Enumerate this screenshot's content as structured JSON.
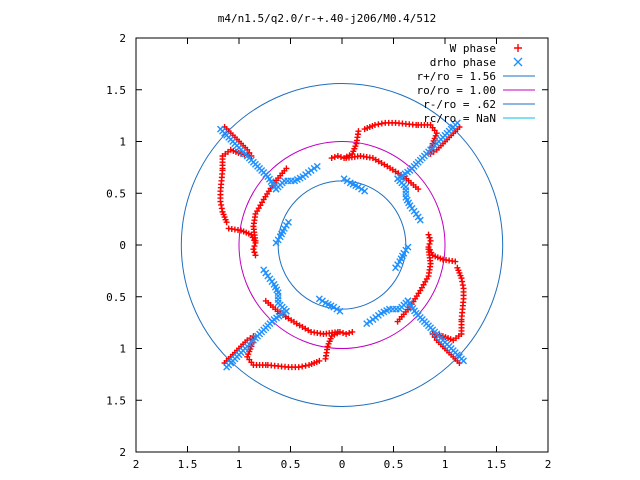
{
  "chart_data": {
    "type": "scatter",
    "title": "m4/n1.5/q2.0/r-+.40-j206/M0.4/512",
    "xlim": [
      -2,
      2
    ],
    "ylim": [
      -2,
      2
    ],
    "x_ticks": [
      -2,
      -1.5,
      -1,
      -0.5,
      0,
      0.5,
      1,
      1.5,
      2
    ],
    "y_ticks": [
      -2,
      -1.5,
      -1,
      -0.5,
      0,
      0.5,
      1,
      1.5,
      2
    ],
    "x_tick_labels": [
      "2",
      "1.5",
      "1",
      "0.5",
      "0",
      "0.5",
      "1",
      "1.5",
      "2"
    ],
    "y_tick_labels": [
      "2",
      "1.5",
      "1",
      "0.5",
      "0",
      "0.5",
      "1",
      "1.5",
      "2"
    ],
    "grid": false,
    "legend_position": "top-right",
    "series": [
      {
        "name": "W phase",
        "kind": "points",
        "marker": "+",
        "color": "#ff0000",
        "symmetry": 4,
        "arms": [
          [
            [
              1.14,
              1.14
            ],
            [
              1.02,
              1.02
            ],
            [
              0.92,
              0.92
            ],
            [
              0.86,
              0.88
            ],
            [
              0.88,
              0.98
            ],
            [
              0.92,
              1.08
            ],
            [
              0.86,
              1.16
            ],
            [
              0.74,
              1.16
            ]
          ],
          [
            [
              0.72,
              1.16
            ],
            [
              0.62,
              1.17
            ],
            [
              0.52,
              1.18
            ],
            [
              0.42,
              1.18
            ],
            [
              0.32,
              1.16
            ],
            [
              0.22,
              1.12
            ]
          ],
          [
            [
              0.16,
              1.1
            ],
            [
              0.14,
              0.98
            ],
            [
              0.1,
              0.88
            ],
            [
              0.02,
              0.84
            ],
            [
              -0.04,
              0.86
            ],
            [
              -0.1,
              0.84
            ]
          ],
          [
            [
              -0.54,
              0.74
            ],
            [
              -0.66,
              0.6
            ],
            [
              -0.76,
              0.44
            ],
            [
              -0.84,
              0.3
            ],
            [
              -0.86,
              0.18
            ],
            [
              -0.84,
              0.04
            ]
          ]
        ]
      },
      {
        "name": "drho phase",
        "kind": "points",
        "marker": "x",
        "color": "#1e90ff",
        "symmetry": 4,
        "arms": [
          [
            [
              -1.18,
              1.12
            ],
            [
              -1.06,
              1.0
            ],
            [
              -0.94,
              0.88
            ],
            [
              -0.82,
              0.76
            ],
            [
              -0.72,
              0.66
            ],
            [
              -0.64,
              0.54
            ]
          ],
          [
            [
              -0.64,
              0.54
            ],
            [
              -0.56,
              0.62
            ],
            [
              -0.46,
              0.62
            ],
            [
              -0.38,
              0.66
            ],
            [
              -0.3,
              0.72
            ],
            [
              -0.24,
              0.76
            ]
          ],
          [
            [
              0.02,
              0.64
            ],
            [
              0.08,
              0.6
            ],
            [
              0.16,
              0.56
            ],
            [
              0.22,
              0.52
            ]
          ]
        ]
      },
      {
        "name": "r+/ro = 1.56",
        "kind": "circle",
        "r": 1.56,
        "color": "#1e6fbf"
      },
      {
        "name": "ro/ro = 1.00",
        "kind": "circle",
        "r": 1.0,
        "color": "#c000c0"
      },
      {
        "name": "r-/ro = .62",
        "kind": "circle",
        "r": 0.62,
        "color": "#1e6fbf"
      },
      {
        "name": "rc/ro = NaN",
        "kind": "circle",
        "r": null,
        "color": "#00c0e0"
      }
    ]
  }
}
